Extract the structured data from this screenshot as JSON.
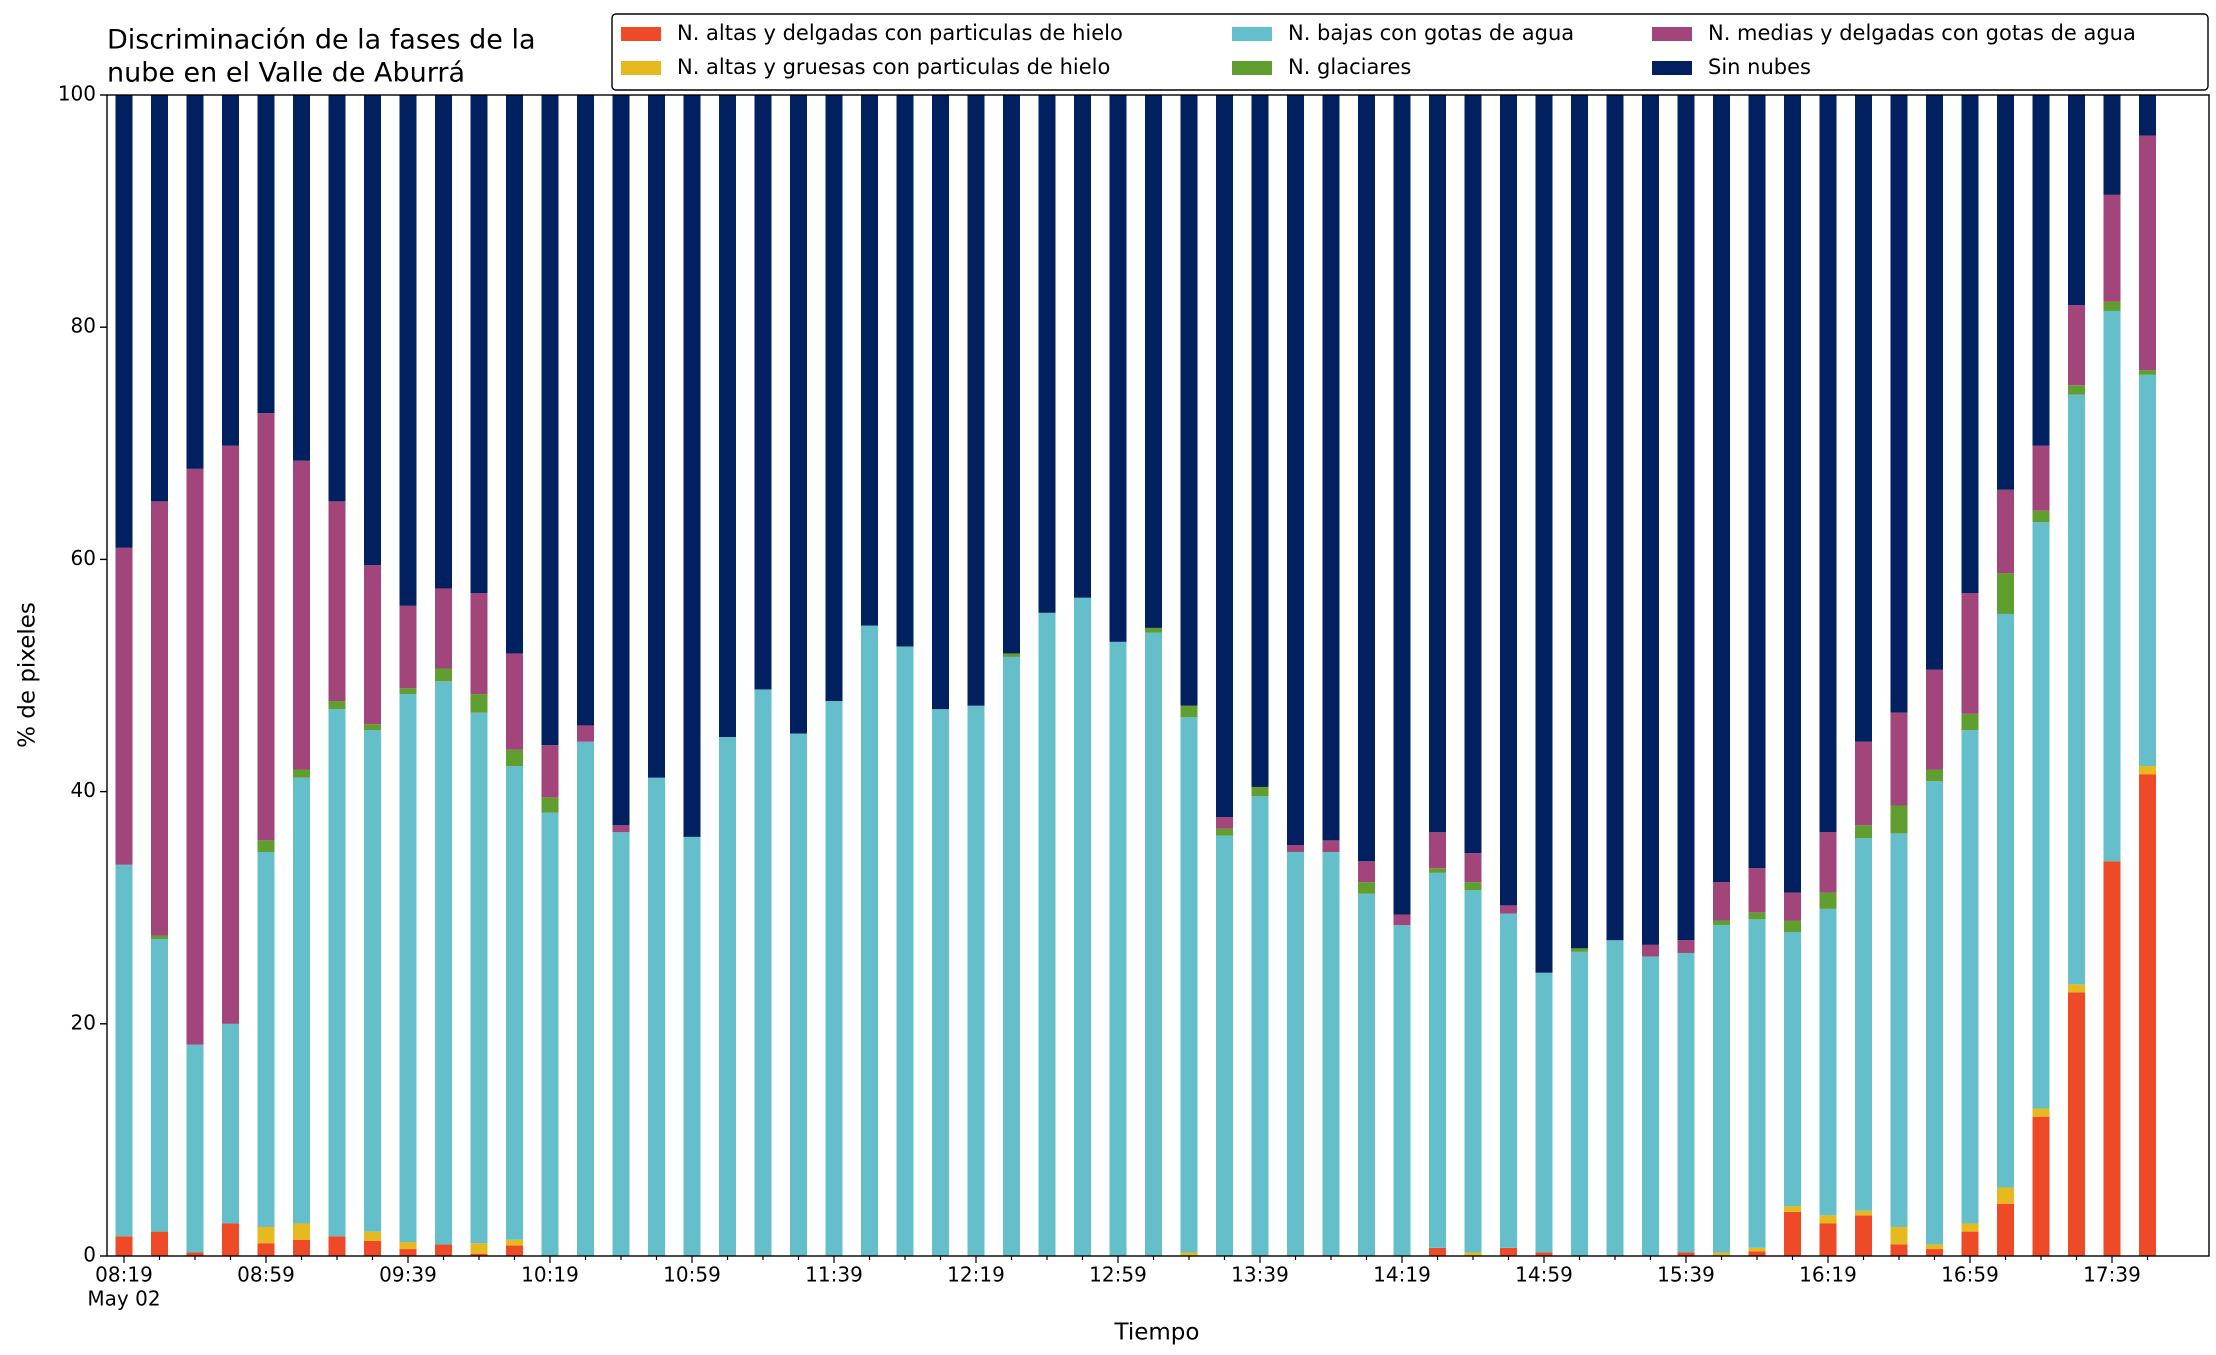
{
  "chart_data": {
    "type": "stacked_bar",
    "title": [
      "Discriminación de la fases de la",
      "nube en el Valle de Aburrá"
    ],
    "xlabel": "Tiempo",
    "ylabel": "% de pixeles",
    "date_label": "May 02",
    "categories": [
      "08:19",
      null,
      null,
      null,
      "08:59",
      null,
      null,
      null,
      "09:39",
      null,
      null,
      null,
      "10:19",
      null,
      null,
      null,
      "10:59",
      null,
      null,
      null,
      "11:39",
      null,
      null,
      null,
      "12:19",
      null,
      null,
      null,
      "12:59",
      null,
      null,
      null,
      "13:39",
      null,
      null,
      null,
      "14:19",
      null,
      null,
      null,
      "14:59",
      null,
      null,
      null,
      "15:39",
      null,
      null,
      null,
      "16:19",
      null,
      null,
      null,
      "16:59",
      null,
      null,
      null,
      "17:39",
      null
    ],
    "ylim": [
      0,
      100
    ],
    "yticks": [
      0,
      20,
      40,
      60,
      80,
      100
    ],
    "legend": "top-right",
    "series": [
      {
        "name": "N. altas y delgadas con particulas de hielo",
        "color": "#ef4a28",
        "values": [
          1.7,
          2.1,
          0.3,
          2.8,
          1.1,
          1.4,
          1.7,
          1.3,
          0.6,
          1.0,
          0.2,
          0.9,
          0,
          0,
          0,
          0,
          0,
          0,
          0,
          0,
          0,
          0,
          0,
          0,
          0,
          0,
          0,
          0,
          0,
          0,
          0,
          0,
          0,
          0,
          0,
          0,
          0,
          0.7,
          0,
          0.7,
          0.3,
          0,
          0,
          0,
          0.3,
          0,
          0.4,
          3.8,
          2.8,
          3.5,
          1.0,
          0.6,
          2.1,
          4.5,
          12.0,
          22.7,
          34.0,
          41.5
        ]
      },
      {
        "name": "N. altas y gruesas con particulas de hielo",
        "color": "#e6b91e",
        "values": [
          0,
          0,
          0,
          0,
          1.4,
          1.4,
          0,
          0.8,
          0.6,
          0,
          0.9,
          0.5,
          0,
          0,
          0,
          0,
          0,
          0,
          0,
          0,
          0,
          0,
          0,
          0,
          0,
          0,
          0,
          0,
          0,
          0,
          0.3,
          0,
          0,
          0,
          0,
          0,
          0,
          0,
          0.3,
          0,
          0,
          0,
          0,
          0,
          0,
          0.3,
          0.3,
          0.5,
          0.7,
          0.4,
          1.5,
          0.4,
          0.7,
          1.4,
          0.7,
          0.7,
          0,
          0.7
        ]
      },
      {
        "name": "N. bajas con gotas de agua",
        "color": "#65bfca",
        "values": [
          32.0,
          25.2,
          17.9,
          17.2,
          32.3,
          38.4,
          45.4,
          43.2,
          47.2,
          48.5,
          45.7,
          40.8,
          38.2,
          44.3,
          36.5,
          41.2,
          36.1,
          44.7,
          48.8,
          45.0,
          47.8,
          54.3,
          52.5,
          47.1,
          47.4,
          51.6,
          55.4,
          56.7,
          52.9,
          53.7,
          46.1,
          36.2,
          39.6,
          34.8,
          34.8,
          31.2,
          28.5,
          32.3,
          31.2,
          28.8,
          24.1,
          26.2,
          27.2,
          25.8,
          25.8,
          28.2,
          28.3,
          23.6,
          26.4,
          32.1,
          33.9,
          39.9,
          42.5,
          49.4,
          50.5,
          50.8,
          47.4,
          33.7
        ]
      },
      {
        "name": "N. glaciares",
        "color": "#5f9e2f",
        "values": [
          0,
          0.3,
          0,
          0,
          1.0,
          0.7,
          0.7,
          0.5,
          0.5,
          1.1,
          1.6,
          1.4,
          1.3,
          0,
          0,
          0,
          0,
          0,
          0,
          0,
          0,
          0,
          0,
          0,
          0,
          0.3,
          0,
          0,
          0,
          0.4,
          1.0,
          0.6,
          0.8,
          0,
          0,
          1.0,
          0,
          0.4,
          0.7,
          0,
          0,
          0.3,
          0,
          0,
          0,
          0.4,
          0.6,
          1.0,
          1.4,
          1.1,
          2.4,
          1.0,
          1.4,
          3.5,
          1.0,
          0.8,
          0.8,
          0.4
        ]
      },
      {
        "name": "N. medias y delgadas con gotas de agua",
        "color": "#a1457a",
        "values": [
          27.3,
          37.4,
          49.6,
          49.8,
          36.8,
          26.6,
          17.2,
          13.7,
          7.1,
          6.9,
          8.7,
          8.3,
          4.5,
          1.4,
          0.6,
          0,
          0,
          0,
          0,
          0,
          0,
          0,
          0,
          0,
          0,
          0,
          0,
          0,
          0,
          0,
          0,
          1.0,
          0,
          0.6,
          1.0,
          1.8,
          0.9,
          3.1,
          2.5,
          0.7,
          0,
          0,
          0,
          1.0,
          1.1,
          3.3,
          3.8,
          2.4,
          5.2,
          7.2,
          8.0,
          8.6,
          10.4,
          7.2,
          5.6,
          6.9,
          9.2,
          20.2
        ]
      },
      {
        "name": "Sin nubes",
        "color": "#00205f",
        "values": [
          39.0,
          35.0,
          32.2,
          30.2,
          27.4,
          31.5,
          35.0,
          40.5,
          44.0,
          42.5,
          42.9,
          48.1,
          56.0,
          54.3,
          62.9,
          58.8,
          63.9,
          55.3,
          51.2,
          55.0,
          52.2,
          45.7,
          47.5,
          52.9,
          52.6,
          48.1,
          44.6,
          43.3,
          47.1,
          45.9,
          52.6,
          62.2,
          59.6,
          64.6,
          64.2,
          66.0,
          70.6,
          63.5,
          65.3,
          69.8,
          75.6,
          73.5,
          72.8,
          73.2,
          72.8,
          67.8,
          66.6,
          68.7,
          63.5,
          55.7,
          53.2,
          49.5,
          42.9,
          34.0,
          30.2,
          18.1,
          8.6,
          3.5
        ]
      }
    ]
  }
}
